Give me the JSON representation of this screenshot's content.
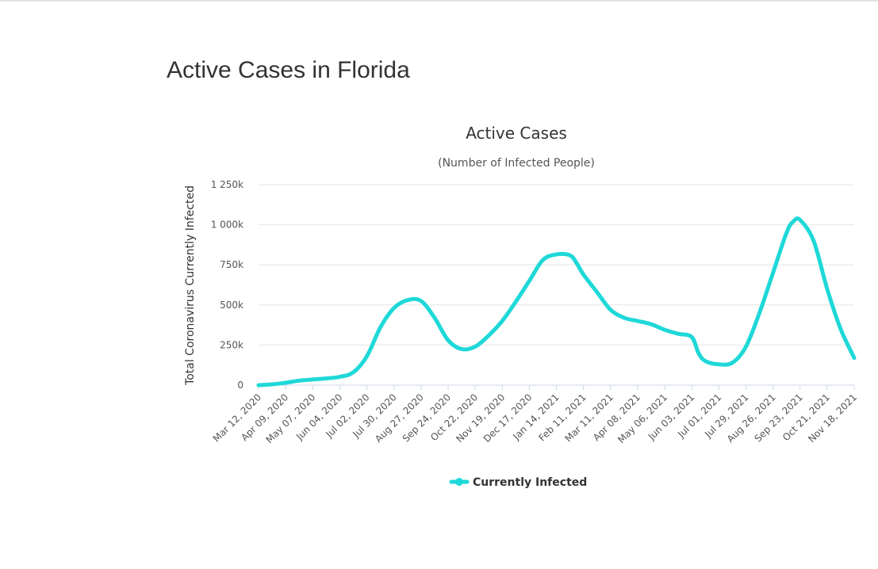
{
  "page": {
    "title": "Active Cases in Florida"
  },
  "colors": {
    "series": "#1fd8d8",
    "grid": "#e6e6e6",
    "axis": "#ccd6eb"
  },
  "chart_data": {
    "type": "line",
    "title": "Active Cases",
    "subtitle": "(Number of Infected People)",
    "xlabel": "",
    "ylabel": "Total Coronavirus Currently Infected",
    "ylim": [
      0,
      1250000
    ],
    "yticks": [
      0,
      250000,
      500000,
      750000,
      1000000,
      1250000
    ],
    "ytick_labels": [
      "0",
      "250k",
      "500k",
      "750k",
      "1 000k",
      "1 250k"
    ],
    "xticks": [
      "Mar 12, 2020",
      "Apr 09, 2020",
      "May 07, 2020",
      "Jun 04, 2020",
      "Jul 02, 2020",
      "Jul 30, 2020",
      "Aug 27, 2020",
      "Sep 24, 2020",
      "Oct 22, 2020",
      "Nov 19, 2020",
      "Dec 17, 2020",
      "Jan 14, 2021",
      "Feb 11, 2021",
      "Mar 11, 2021",
      "Apr 08, 2021",
      "May 06, 2021",
      "Jun 03, 2021",
      "Jul 01, 2021",
      "Jul 29, 2021",
      "Aug 26, 2021",
      "Sep 23, 2021",
      "Oct 21, 2021",
      "Nov 18, 2021"
    ],
    "grid": true,
    "legend_position": "bottom-center",
    "series": [
      {
        "name": "Currently Infected",
        "x": [
          "Mar 12, 2020",
          "Mar 26, 2020",
          "Apr 09, 2020",
          "Apr 23, 2020",
          "May 07, 2020",
          "May 21, 2020",
          "Jun 04, 2020",
          "Jun 18, 2020",
          "Jul 02, 2020",
          "Jul 16, 2020",
          "Jul 30, 2020",
          "Aug 13, 2020",
          "Aug 27, 2020",
          "Sep 10, 2020",
          "Sep 24, 2020",
          "Oct 08, 2020",
          "Oct 22, 2020",
          "Nov 05, 2020",
          "Nov 19, 2020",
          "Dec 03, 2020",
          "Dec 17, 2020",
          "Dec 31, 2020",
          "Jan 14, 2021",
          "Jan 28, 2021",
          "Feb 04, 2021",
          "Feb 11, 2021",
          "Feb 25, 2021",
          "Mar 11, 2021",
          "Mar 25, 2021",
          "Apr 08, 2021",
          "Apr 22, 2021",
          "May 06, 2021",
          "May 20, 2021",
          "Jun 03, 2021",
          "Jun 10, 2021",
          "Jun 17, 2021",
          "Jul 01, 2021",
          "Jul 15, 2021",
          "Jul 29, 2021",
          "Aug 12, 2021",
          "Aug 26, 2021",
          "Sep 09, 2021",
          "Sep 16, 2021",
          "Sep 23, 2021",
          "Oct 07, 2021",
          "Oct 21, 2021",
          "Nov 04, 2021",
          "Nov 18, 2021"
        ],
        "values": [
          0,
          5000,
          15000,
          28000,
          35000,
          42000,
          52000,
          80000,
          180000,
          360000,
          480000,
          530000,
          525000,
          420000,
          280000,
          225000,
          240000,
          310000,
          400000,
          520000,
          650000,
          780000,
          815000,
          810000,
          760000,
          690000,
          580000,
          470000,
          420000,
          400000,
          380000,
          345000,
          320000,
          300000,
          200000,
          150000,
          130000,
          140000,
          240000,
          450000,
          700000,
          950000,
          1020000,
          1030000,
          900000,
          600000,
          350000,
          170000
        ]
      }
    ]
  }
}
